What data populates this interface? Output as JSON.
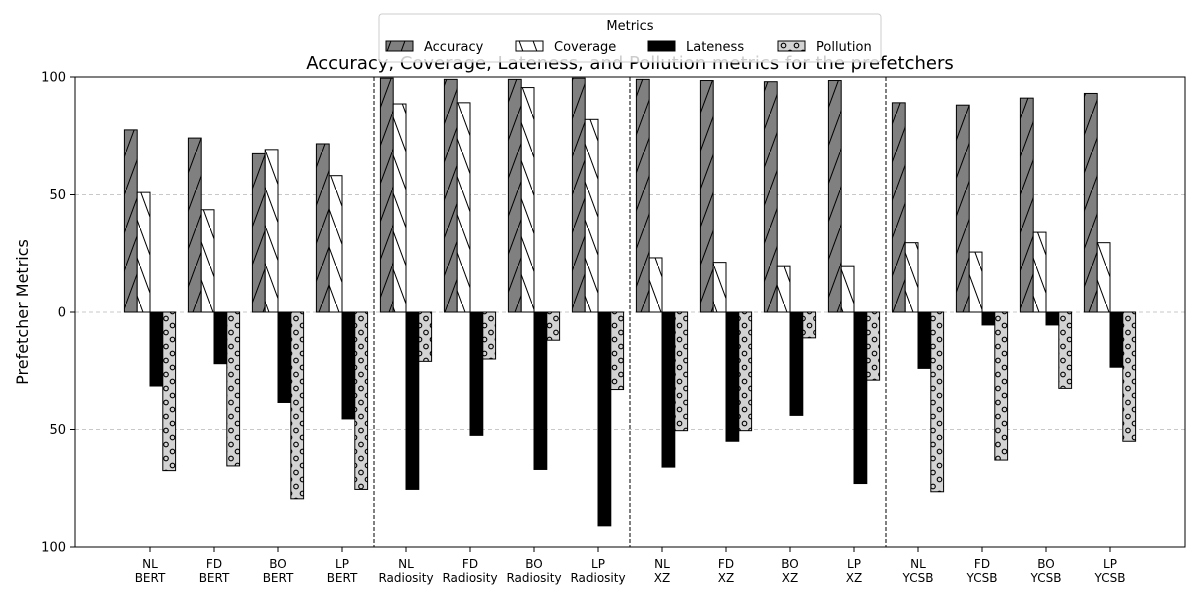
{
  "chart_data": {
    "type": "bar",
    "title": "Accuracy, Coverage, Lateness, and Pollution metrics for the prefetchers",
    "ylabel": "Prefetcher Metrics",
    "xlabel": "",
    "ylim": [
      -100,
      100
    ],
    "yticks": [
      100,
      50,
      0,
      50,
      100
    ],
    "grid": "horizontal dashed",
    "legend": {
      "title": "Metrics",
      "placement": "top-center",
      "entries": [
        "Accuracy",
        "Coverage",
        "Lateness",
        "Pollution"
      ]
    },
    "categories": [
      [
        "NL",
        "BERT"
      ],
      [
        "FD",
        "BERT"
      ],
      [
        "BO",
        "BERT"
      ],
      [
        "LP",
        "BERT"
      ],
      [
        "NL",
        "Radiosity"
      ],
      [
        "FD",
        "Radiosity"
      ],
      [
        "BO",
        "Radiosity"
      ],
      [
        "LP",
        "Radiosity"
      ],
      [
        "NL",
        "XZ"
      ],
      [
        "FD",
        "XZ"
      ],
      [
        "BO",
        "XZ"
      ],
      [
        "LP",
        "XZ"
      ],
      [
        "NL",
        "YCSB"
      ],
      [
        "FD",
        "YCSB"
      ],
      [
        "BO",
        "YCSB"
      ],
      [
        "LP",
        "YCSB"
      ]
    ],
    "series": [
      {
        "name": "Accuracy",
        "direction": "up",
        "color": "#808080",
        "hatch": "diagonal",
        "values": [
          77.5,
          74,
          67.5,
          71.5,
          99.5,
          99,
          99,
          99.5,
          99,
          98.5,
          98,
          98.5,
          89,
          88,
          91,
          93
        ]
      },
      {
        "name": "Coverage",
        "direction": "up",
        "color": "#ffffff",
        "hatch": "backslash",
        "values": [
          51,
          43.5,
          69,
          58,
          88.5,
          89,
          95.5,
          82,
          23,
          21,
          19.5,
          19.5,
          29.5,
          25.5,
          34,
          29.5
        ]
      },
      {
        "name": "Lateness",
        "direction": "down",
        "color": "#000000",
        "hatch": "none",
        "values": [
          31.5,
          22,
          38.5,
          45.5,
          75.5,
          52.5,
          67,
          91,
          66,
          55,
          44,
          73,
          24,
          5.5,
          5.5,
          23.5
        ]
      },
      {
        "name": "Pollution",
        "direction": "down",
        "color": "#d3d3d3",
        "hatch": "circles",
        "values": [
          67.5,
          65.5,
          79.5,
          75.5,
          21,
          20,
          12,
          33,
          50.5,
          50.5,
          11,
          29,
          76.5,
          63,
          32.5,
          55
        ]
      }
    ],
    "group_separators_after": [
      4,
      8,
      12
    ]
  }
}
